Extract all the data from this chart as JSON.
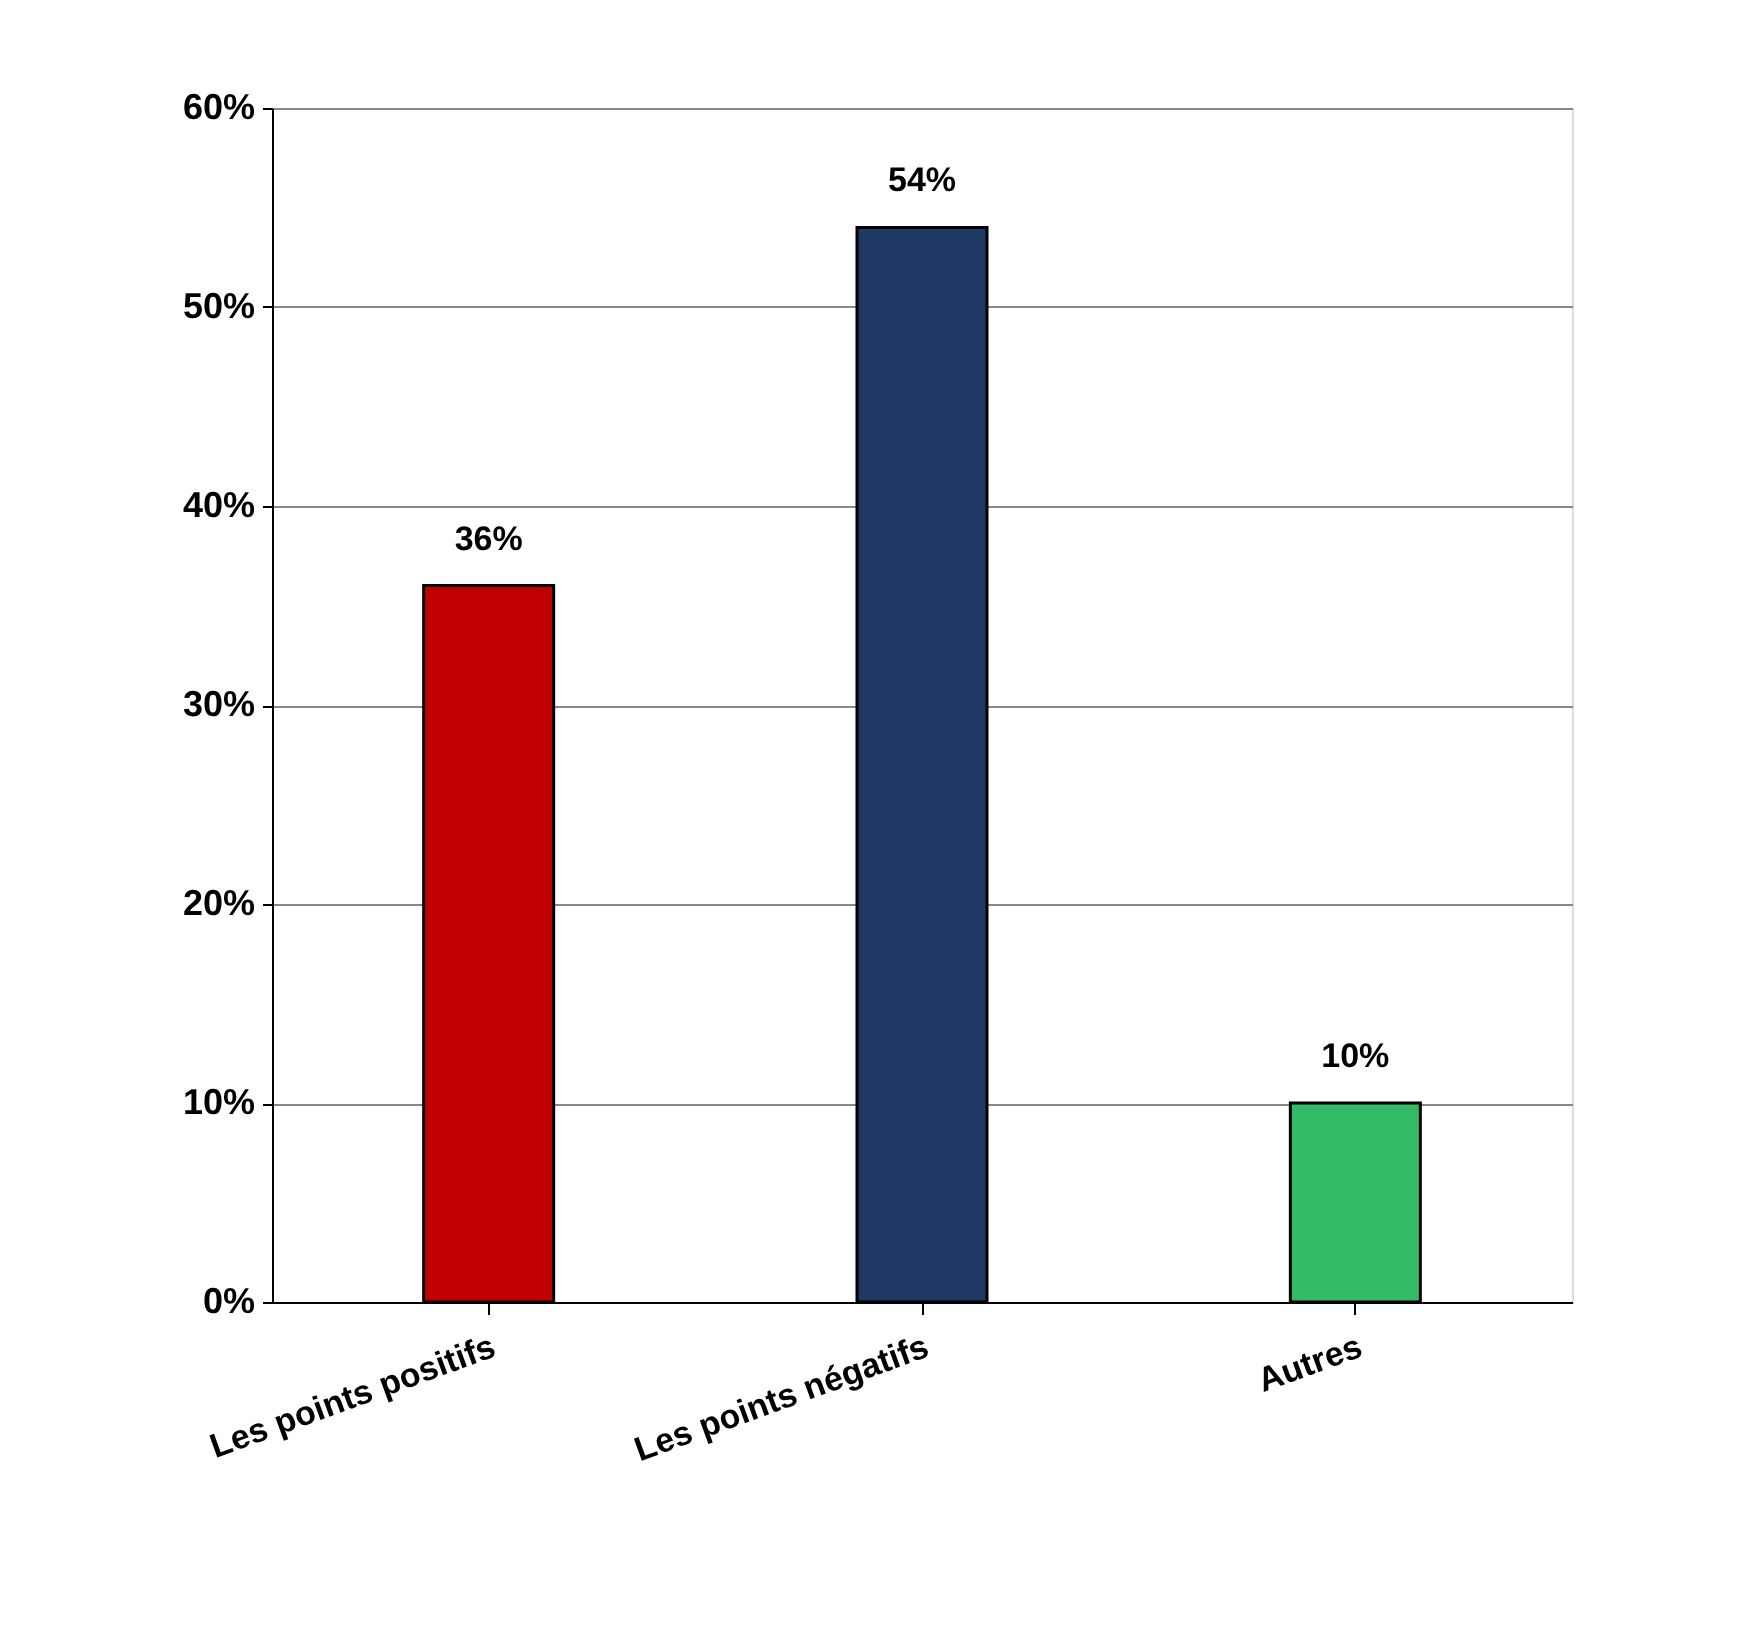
{
  "chart_data": {
    "type": "bar",
    "categories": [
      "Les points positifs",
      "Les points négatifs",
      "Autres"
    ],
    "values": [
      36,
      54,
      10
    ],
    "colors": [
      "#c00000",
      "#1f3864",
      "#33bb66"
    ],
    "value_labels": [
      "36%",
      "54%",
      "10%"
    ],
    "ylim": [
      0,
      60
    ],
    "yticks": [
      {
        "value": 0,
        "label": "0%"
      },
      {
        "value": 10,
        "label": "10%"
      },
      {
        "value": 20,
        "label": "20%"
      },
      {
        "value": 30,
        "label": "30%"
      },
      {
        "value": 40,
        "label": "40%"
      },
      {
        "value": 50,
        "label": "50%"
      },
      {
        "value": 60,
        "label": "60%"
      }
    ],
    "grid": "y"
  }
}
